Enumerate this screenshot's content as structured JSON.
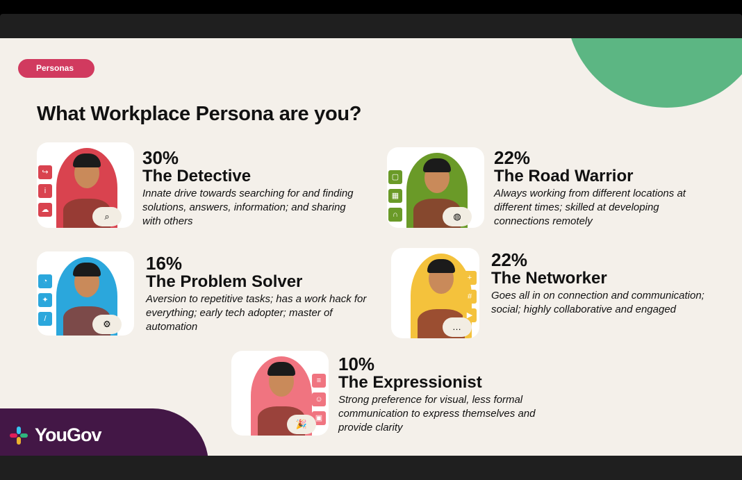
{
  "badge": "Personas",
  "title": "What Workplace Persona are you?",
  "personas": [
    {
      "percent": "30%",
      "name": "The Detective",
      "description": "Innate drive towards searching for and finding solutions, answers, information; and sharing with others",
      "color": "#d9434f",
      "icons": [
        "share-icon",
        "info-icon",
        "cloud-upload-icon"
      ],
      "badge_icon": "magnifier-icon"
    },
    {
      "percent": "22%",
      "name": "The Road Warrior",
      "description": "Always working from different locations at different times; skilled at developing connections remotely",
      "color": "#6a9a28",
      "icons": [
        "chat-icon",
        "calendar-icon",
        "headphones-icon"
      ],
      "badge_icon": "globe-icon"
    },
    {
      "percent": "16%",
      "name": "The Problem Solver",
      "description": "Aversion to repetitive tasks; has a work hack for everything; early tech adopter; master of automation",
      "color": "#2ba7dc",
      "icons": [
        "gauge-icon",
        "magic-wand-icon",
        "slash-command-icon"
      ],
      "badge_icon": "gear-icon"
    },
    {
      "percent": "22%",
      "name": "The Networker",
      "description": "Goes all in on connection and communication; social; highly collaborative and engaged",
      "color": "#f4c23c",
      "icons": [
        "add-user-icon",
        "hashtag-icon",
        "video-icon"
      ],
      "badge_icon": "message-icon"
    },
    {
      "percent": "10%",
      "name": "The Expressionist",
      "description": "Strong preference for visual, less formal communication to express themselves and provide clarity",
      "color": "#f07480",
      "icons": [
        "gif-icon",
        "emoji-icon",
        "image-icon"
      ],
      "badge_icon": "party-popper-icon"
    }
  ],
  "footer": {
    "logo": "YouGov"
  }
}
